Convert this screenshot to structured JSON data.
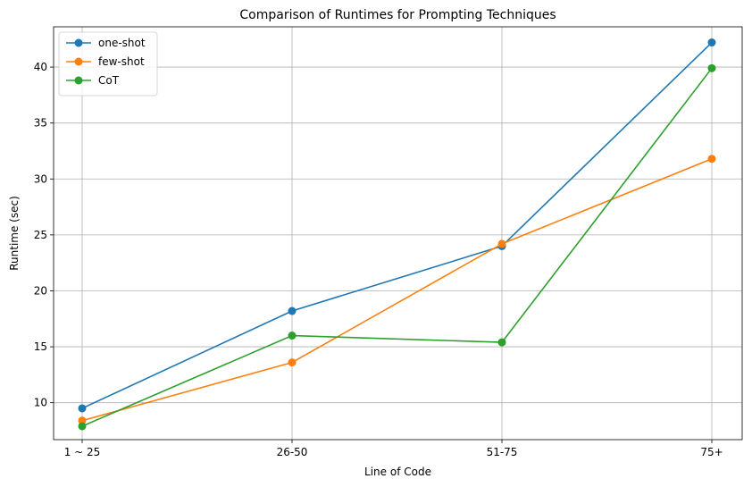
{
  "chart_data": {
    "type": "line",
    "title": "Comparison of Runtimes for Prompting Techniques",
    "xlabel": "Line of Code",
    "ylabel": "Runtime (sec)",
    "categories": [
      "1 ~ 25",
      "26-50",
      "51-75",
      "75+"
    ],
    "ylim": [
      6.7,
      43.6
    ],
    "yticks": [
      10,
      15,
      20,
      25,
      30,
      35,
      40
    ],
    "grid": true,
    "legend_position": "top-left",
    "markers": "circle",
    "series": [
      {
        "name": "one-shot",
        "color": "#1f77b4",
        "values": [
          9.5,
          18.2,
          24.0,
          42.2
        ]
      },
      {
        "name": "few-shot",
        "color": "#ff7f0e",
        "values": [
          8.4,
          13.6,
          24.2,
          31.8
        ]
      },
      {
        "name": "CoT",
        "color": "#2ca02c",
        "values": [
          7.9,
          16.0,
          15.4,
          39.9
        ]
      }
    ]
  }
}
